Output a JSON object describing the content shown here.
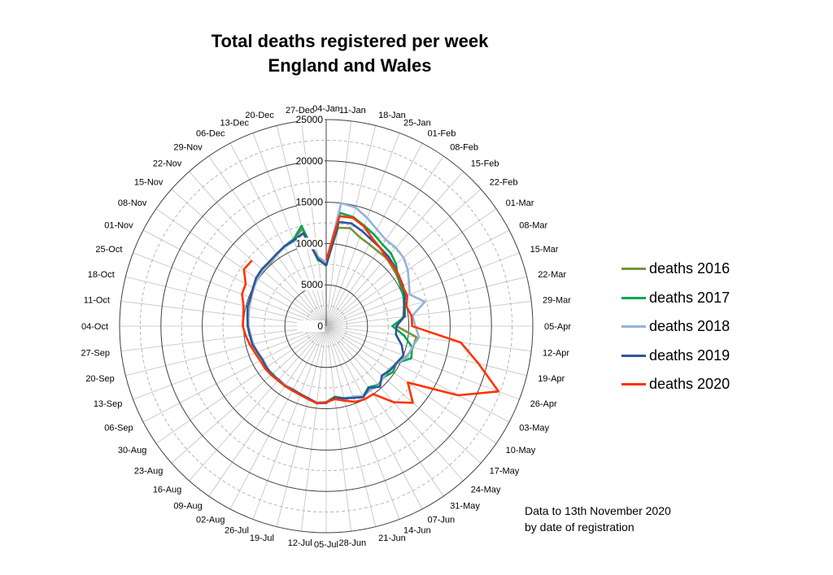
{
  "chart_data": {
    "type": "radar",
    "title": "Total deaths registered per week",
    "subtitle": "England and Wales",
    "radial_ticks": [
      0,
      5000,
      10000,
      15000,
      20000,
      25000
    ],
    "rlim": [
      0,
      25000
    ],
    "categories": [
      "04-Jan",
      "11-Jan",
      "18-Jan",
      "25-Jan",
      "01-Feb",
      "08-Feb",
      "15-Feb",
      "22-Feb",
      "01-Mar",
      "08-Mar",
      "15-Mar",
      "22-Mar",
      "29-Mar",
      "05-Apr",
      "12-Apr",
      "19-Apr",
      "26-Apr",
      "03-May",
      "10-May",
      "17-May",
      "24-May",
      "31-May",
      "07-Jun",
      "14-Jun",
      "21-Jun",
      "28-Jun",
      "05-Jul",
      "12-Jul",
      "19-Jul",
      "26-Jul",
      "02-Aug",
      "09-Aug",
      "16-Aug",
      "23-Aug",
      "30-Aug",
      "06-Sep",
      "13-Sep",
      "20-Sep",
      "27-Sep",
      "04-Oct",
      "11-Oct",
      "18-Oct",
      "25-Oct",
      "01-Nov",
      "08-Nov",
      "15-Nov",
      "22-Nov",
      "29-Nov",
      "06-Dec",
      "13-Dec",
      "20-Dec",
      "27-Dec"
    ],
    "series": [
      {
        "name": "deaths 2016",
        "color": "#77933c",
        "values": [
          7500,
          12000,
          12200,
          11500,
          11200,
          11000,
          11000,
          10700,
          10500,
          10300,
          10000,
          9700,
          9400,
          8500,
          11000,
          10800,
          10400,
          9600,
          9400,
          9200,
          9600,
          9000,
          9700,
          9200,
          9000,
          8600,
          9200,
          9400,
          9000,
          8900,
          8800,
          8800,
          8700,
          8800,
          8800,
          8700,
          8900,
          9100,
          9300,
          9500,
          9500,
          9600,
          9700,
          10000,
          10100,
          10300,
          10200,
          10500,
          10900,
          11200,
          12100,
          8500
        ]
      },
      {
        "name": "deaths 2017",
        "color": "#00a651",
        "values": [
          7600,
          13800,
          13600,
          13000,
          12500,
          12000,
          11800,
          11300,
          10500,
          10200,
          10000,
          9800,
          9600,
          8000,
          9500,
          10700,
          11000,
          9600,
          9800,
          9300,
          9500,
          9000,
          9600,
          9200,
          9000,
          8700,
          9200,
          9400,
          9000,
          8800,
          8700,
          8700,
          8700,
          8700,
          8800,
          8700,
          8900,
          9100,
          9300,
          9500,
          9500,
          9600,
          9800,
          9900,
          10200,
          10300,
          10300,
          10500,
          10900,
          11200,
          12500,
          8000
        ]
      },
      {
        "name": "deaths 2018",
        "color": "#95b3d7",
        "values": [
          7700,
          15000,
          14800,
          14000,
          13200,
          12700,
          12700,
          12500,
          12000,
          11300,
          10800,
          12300,
          10500,
          10800,
          11300,
          10700,
          10500,
          9700,
          9200,
          9300,
          9600,
          9400,
          9600,
          9100,
          9200,
          8800,
          9200,
          9300,
          9000,
          8800,
          8600,
          8700,
          8600,
          8800,
          8700,
          8700,
          8900,
          9100,
          9200,
          9400,
          9500,
          9600,
          9700,
          9900,
          10100,
          10200,
          10300,
          10500,
          10800,
          11000,
          11500,
          8500
        ]
      },
      {
        "name": "deaths 2019",
        "color": "#2f5597",
        "values": [
          7300,
          12700,
          12800,
          12300,
          11800,
          11500,
          11300,
          11000,
          10700,
          10500,
          10200,
          9700,
          9500,
          8500,
          8500,
          9400,
          10000,
          9600,
          9400,
          9000,
          9800,
          9100,
          9700,
          9300,
          9000,
          8700,
          9300,
          9400,
          9000,
          8800,
          8700,
          8800,
          8700,
          8800,
          8800,
          8700,
          8900,
          9200,
          9300,
          9500,
          9600,
          9800,
          9800,
          10000,
          10300,
          10400,
          10400,
          10600,
          10900,
          11100,
          11600,
          8200
        ]
      },
      {
        "name": "deaths 2020",
        "color": "#ff3300",
        "values": [
          8000,
          13400,
          13500,
          12900,
          12000,
          11500,
          11000,
          10900,
          10700,
          10400,
          10500,
          10000,
          10400,
          10400,
          16400,
          19000,
          22300,
          18000,
          12000,
          14000,
          12300,
          10000,
          10000,
          9800,
          9300,
          8900,
          9200,
          9400,
          9100,
          8900,
          8800,
          8800,
          8800,
          8900,
          9000,
          9000,
          9200,
          9500,
          9800,
          10100,
          10100,
          10300,
          10900,
          11000,
          12100,
          12000,
          null,
          null,
          null,
          null,
          null,
          null
        ]
      }
    ],
    "legend_position": "right",
    "grid": true
  },
  "annotation": {
    "line1": "Data to 13th November 2020",
    "line2": "by date of registration"
  }
}
